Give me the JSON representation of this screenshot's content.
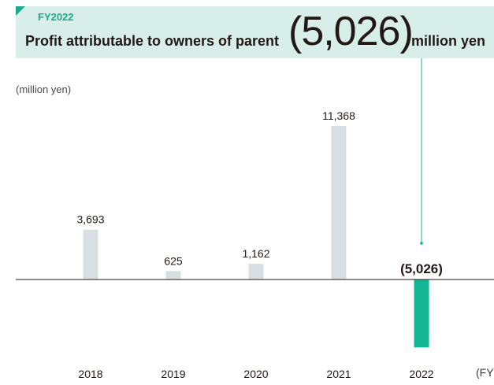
{
  "header": {
    "fiscal_year": "FY2022",
    "label": "Profit attributable to owners of parent",
    "value": "(5,026)",
    "unit": "million yen"
  },
  "colors": {
    "header_bg": "#d8eee8",
    "accent": "#1aa98a",
    "bar_default": "#d8dfe2",
    "bar_highlight": "#12b594"
  },
  "chart_data": {
    "type": "bar",
    "ylabel": "(million yen)",
    "xlabel": "(FY)",
    "categories": [
      "2018",
      "2019",
      "2020",
      "2021",
      "2022"
    ],
    "values": [
      3693,
      625,
      1162,
      11368,
      -5026
    ],
    "value_labels": [
      "3,693",
      "625",
      "1,162",
      "11,368",
      "(5,026)"
    ],
    "highlight_index": 4,
    "grid": false
  }
}
